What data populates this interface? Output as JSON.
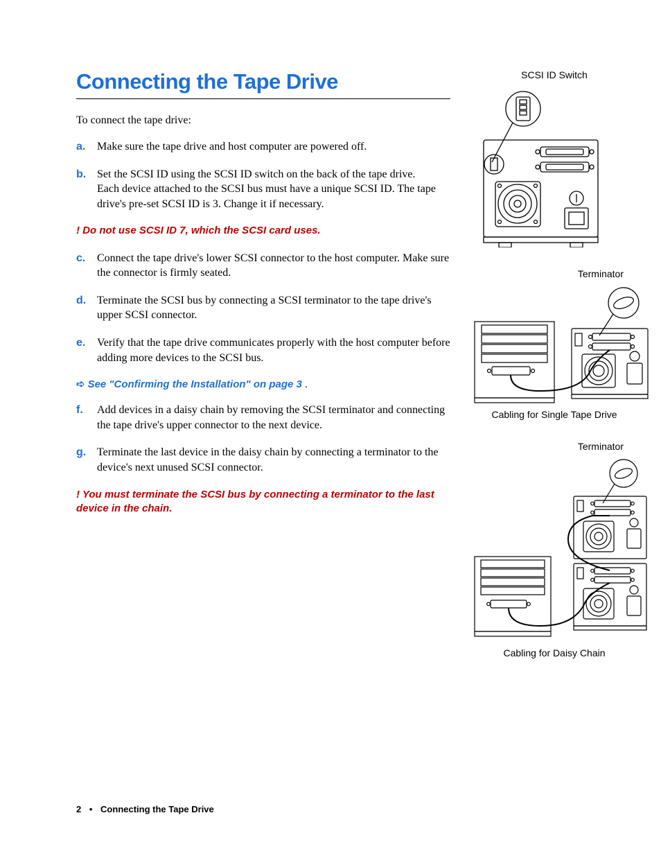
{
  "colors": {
    "accent": "#1e6fd6",
    "warn": "#c00000",
    "text": "#000000",
    "bg": "#ffffff"
  },
  "title": "Connecting the Tape Drive",
  "intro": "To connect the tape drive:",
  "steps": [
    {
      "marker": "a.",
      "text": "Make sure the tape drive and host computer are powered off."
    },
    {
      "marker": "b.",
      "text": "Set the SCSI ID using the SCSI ID switch on the back of the tape drive.\nEach device attached to the SCSI bus must have a unique SCSI ID. The tape drive's pre-set SCSI ID is 3. Change it if necessary."
    },
    {
      "marker": "c.",
      "text": "Connect the tape drive's lower SCSI connector to the host computer. Make sure the connector is firmly seated."
    },
    {
      "marker": "d.",
      "text": "Terminate the SCSI bus by connecting a SCSI terminator to the tape drive's upper SCSI connector."
    },
    {
      "marker": "e.",
      "text": "Verify that the tape drive communicates properly with the host computer before adding more devices to the SCSI bus."
    },
    {
      "marker": "f.",
      "text": "Add devices in a daisy chain by removing the SCSI terminator and connecting the tape drive's upper connector to the next device."
    },
    {
      "marker": "g.",
      "text": "Terminate the last device in the daisy chain by connecting a terminator to the device's next unused SCSI connector."
    }
  ],
  "warn1": "! Do not use SCSI ID 7, which the SCSI card uses.",
  "xref_arrow": "➪",
  "xref": "See \"Confirming the Installation\" on page 3",
  "xref_period": ".",
  "warn2": "! You must terminate the SCSI bus by connecting a terminator to the last device in the chain.",
  "fig1_label": "SCSI ID Switch",
  "fig2_label": "Terminator",
  "fig2_caption": "Cabling for Single Tape Drive",
  "fig3_label": "Terminator",
  "fig3_caption": "Cabling for Daisy Chain",
  "footer_page": "2",
  "footer_bullet": "•",
  "footer_title": "Connecting the Tape Drive"
}
